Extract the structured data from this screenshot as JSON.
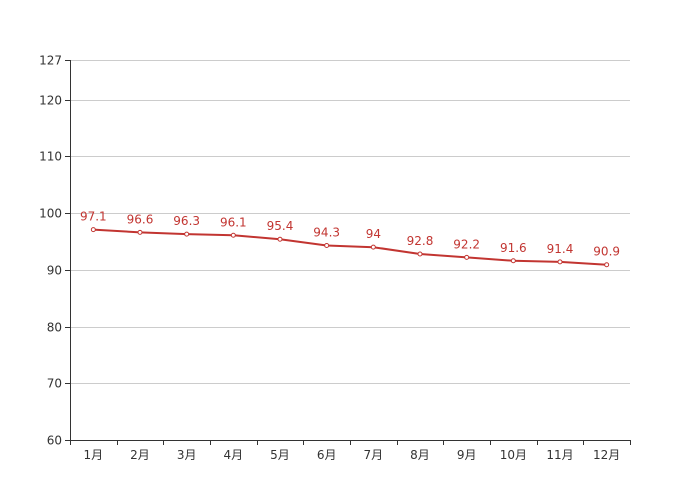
{
  "chart_data": {
    "type": "line",
    "title": "",
    "xlabel": "",
    "ylabel": "",
    "categories": [
      "1月",
      "2月",
      "3月",
      "4月",
      "5月",
      "6月",
      "7月",
      "8月",
      "9月",
      "10月",
      "11月",
      "12月"
    ],
    "series": [
      {
        "values": [
          97.1,
          96.6,
          96.3,
          96.1,
          95.4,
          94.3,
          94,
          92.8,
          92.2,
          91.6,
          91.4,
          90.9
        ]
      }
    ],
    "ylim": [
      60,
      127
    ],
    "yticks": [
      60,
      70,
      80,
      90,
      100,
      110,
      120,
      127
    ],
    "grid": true,
    "data_labels": true,
    "colors": {
      "line": "#c23531",
      "axis": "#333333",
      "grid": "#cccccc"
    }
  }
}
